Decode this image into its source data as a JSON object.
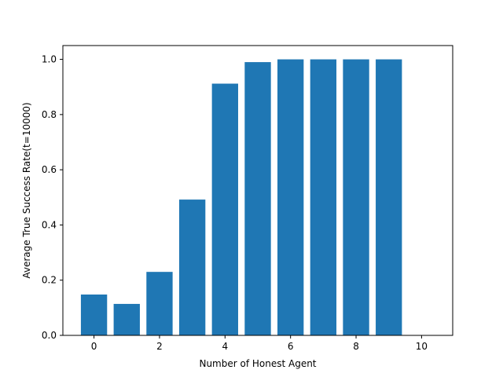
{
  "chart_data": {
    "type": "bar",
    "x": [
      0,
      1,
      2,
      3,
      4,
      5,
      6,
      7,
      8,
      9
    ],
    "values": [
      0.148,
      0.114,
      0.23,
      0.492,
      0.912,
      0.99,
      1.0,
      1.0,
      1.0,
      1.0
    ],
    "xlabel": "Number of Honest Agent",
    "ylabel": "Average True Success Rate(t=10000)",
    "xlim": [
      -0.95,
      10.95
    ],
    "ylim": [
      0,
      1.05
    ],
    "xticks": [
      0,
      2,
      4,
      6,
      8,
      10
    ],
    "yticks": [
      0.0,
      0.2,
      0.4,
      0.6,
      0.8,
      1.0
    ],
    "xtick_labels": [
      "0",
      "2",
      "4",
      "6",
      "8",
      "10"
    ],
    "ytick_labels": [
      "0.0",
      "0.2",
      "0.4",
      "0.6",
      "0.8",
      "1.0"
    ],
    "bar_color": "#1f77b4",
    "grid": false,
    "legend": false
  }
}
